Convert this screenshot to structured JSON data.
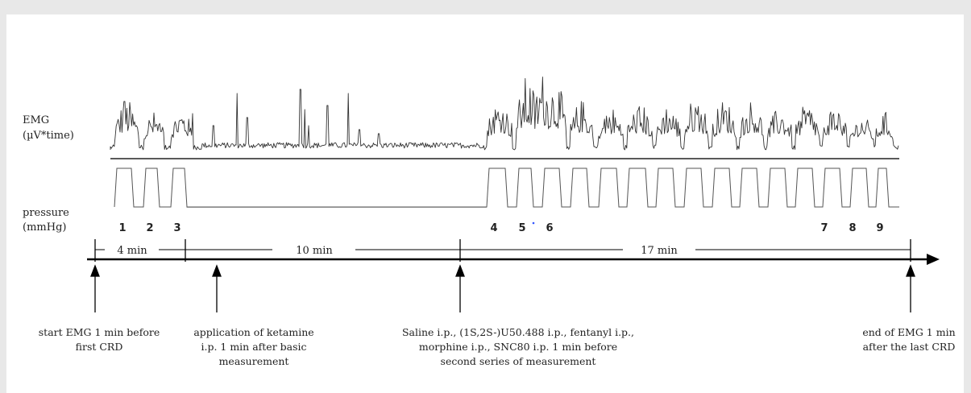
{
  "labels": {
    "emg_line1": "EMG",
    "emg_line2": "(µV*time)",
    "pressure_line1": "pressure",
    "pressure_line2": "(mmHg)"
  },
  "stimulus_numbers": [
    "1",
    "2",
    "3",
    "4",
    "5",
    "6",
    "7",
    "8",
    "9"
  ],
  "stimulus_marker_dot_color": "#3355ff",
  "durations": [
    "4 min",
    "10 min",
    "17 min"
  ],
  "events": [
    {
      "lines": [
        "start EMG 1 min before",
        "first CRD"
      ]
    },
    {
      "lines": [
        "application of ketamine",
        "i.p. 1 min after basic",
        "measurement"
      ]
    },
    {
      "lines": [
        "Saline i.p., (1S,2S-)U50.488 i.p., fentanyl i.p.,",
        "morphine i.p., SNC80 i.p. 1 min before",
        "second series of measurement"
      ]
    },
    {
      "lines": [
        "end of EMG 1 min",
        "after the last CRD"
      ]
    }
  ],
  "colors": {
    "trace": "#333333",
    "axis": "#000000",
    "background": "#ffffff"
  }
}
